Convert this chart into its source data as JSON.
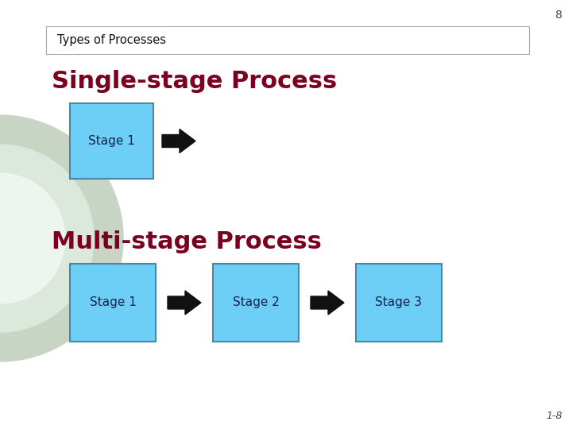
{
  "slide_bg": "#ffffff",
  "page_number": "8",
  "footer_number": "1-8",
  "header_text": "Types of Processes",
  "single_stage_title": "Single-stage Process",
  "multi_stage_title": "Multi-stage Process",
  "box_color": "#6dcff6",
  "box_edge_color": "#4a86a8",
  "box_text_color": "#1a2050",
  "title_color": "#7b0020",
  "header_text_color": "#111111",
  "arrow_color": "#111111",
  "single_stage_boxes": [
    "Stage 1"
  ],
  "multi_stage_boxes": [
    "Stage 1",
    "Stage 2",
    "Stage 3"
  ],
  "page_num_color": "#444444",
  "footer_color": "#444444",
  "circle_outer_color": "#c8d4c4",
  "circle_inner_color": "#dce8dc",
  "circle_white_color": "#eef4ee"
}
